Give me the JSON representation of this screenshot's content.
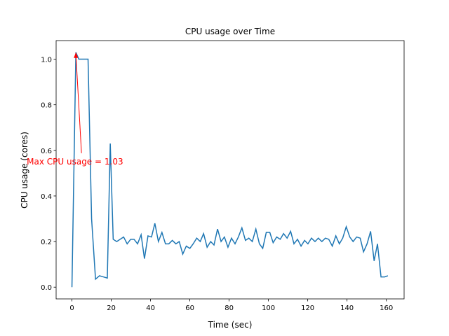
{
  "chart_data": {
    "type": "line",
    "title": "CPU usage over Time",
    "xlabel": "Time (sec)",
    "ylabel": "CPU usage (cores)",
    "x": [
      0,
      2,
      3.5,
      5,
      6.5,
      8.2,
      10,
      12,
      14,
      16,
      18,
      19.5,
      21,
      22.8,
      24.5,
      26.3,
      28.1,
      29.9,
      31.6,
      33.4,
      35.2,
      36.9,
      38.7,
      40.5,
      42.2,
      44.0,
      45.8,
      47.6,
      49.3,
      51.1,
      52.9,
      54.6,
      56.4,
      58.2,
      60.0,
      61.7,
      63.5,
      65.3,
      67.0,
      68.8,
      70.6,
      72.3,
      74.1,
      75.9,
      77.6,
      79.4,
      81.2,
      83.0,
      84.7,
      86.5,
      88.3,
      90.0,
      91.8,
      93.6,
      95.4,
      97.1,
      98.9,
      100.7,
      102.4,
      104.2,
      106.0,
      107.7,
      109.5,
      111.3,
      113.0,
      114.8,
      116.6,
      118.4,
      120.1,
      121.9,
      123.7,
      125.4,
      127.2,
      129.0,
      130.7,
      132.5,
      134.3,
      136.1,
      137.8,
      139.6,
      141.4,
      143.1,
      144.9,
      146.7,
      148.4,
      150.2,
      152.0,
      153.8,
      155.5,
      157.3,
      159.1,
      160.8
    ],
    "series": [
      {
        "name": "CPU usage",
        "color": "#1f77b4",
        "values": [
          0,
          1.03,
          1.0,
          1.0,
          1.0,
          1.0,
          0.3,
          0.035,
          0.05,
          0.045,
          0.04,
          0.63,
          0.21,
          0.2,
          0.21,
          0.22,
          0.19,
          0.21,
          0.21,
          0.19,
          0.23,
          0.125,
          0.225,
          0.22,
          0.28,
          0.2,
          0.24,
          0.19,
          0.19,
          0.205,
          0.19,
          0.2,
          0.145,
          0.18,
          0.17,
          0.19,
          0.215,
          0.2,
          0.235,
          0.175,
          0.2,
          0.185,
          0.255,
          0.2,
          0.22,
          0.175,
          0.215,
          0.19,
          0.22,
          0.26,
          0.205,
          0.215,
          0.2,
          0.255,
          0.19,
          0.17,
          0.24,
          0.24,
          0.195,
          0.22,
          0.21,
          0.235,
          0.215,
          0.245,
          0.19,
          0.21,
          0.18,
          0.205,
          0.19,
          0.215,
          0.2,
          0.215,
          0.2,
          0.215,
          0.21,
          0.18,
          0.225,
          0.19,
          0.215,
          0.265,
          0.22,
          0.2,
          0.22,
          0.215,
          0.155,
          0.19,
          0.245,
          0.115,
          0.19,
          0.045,
          0.045,
          0.05
        ]
      }
    ],
    "xlim": [
      -8.05,
      169.05
    ],
    "xticks": [
      0,
      20,
      40,
      60,
      80,
      100,
      120,
      140,
      160
    ],
    "ylim": [
      -0.0515,
      1.0815
    ],
    "yticks": [
      {
        "value": 0,
        "label": "0.0"
      },
      {
        "value": 0.2,
        "label": "0.2"
      },
      {
        "value": 0.4,
        "label": "0.4"
      },
      {
        "value": 0.6,
        "label": "0.6"
      },
      {
        "value": 0.8,
        "label": "0.8"
      },
      {
        "value": 1.0,
        "label": "1.0"
      }
    ],
    "annotation": {
      "text": "Max CPU usage = 1.03",
      "x": 2,
      "y": 1.03,
      "color": "red"
    }
  }
}
